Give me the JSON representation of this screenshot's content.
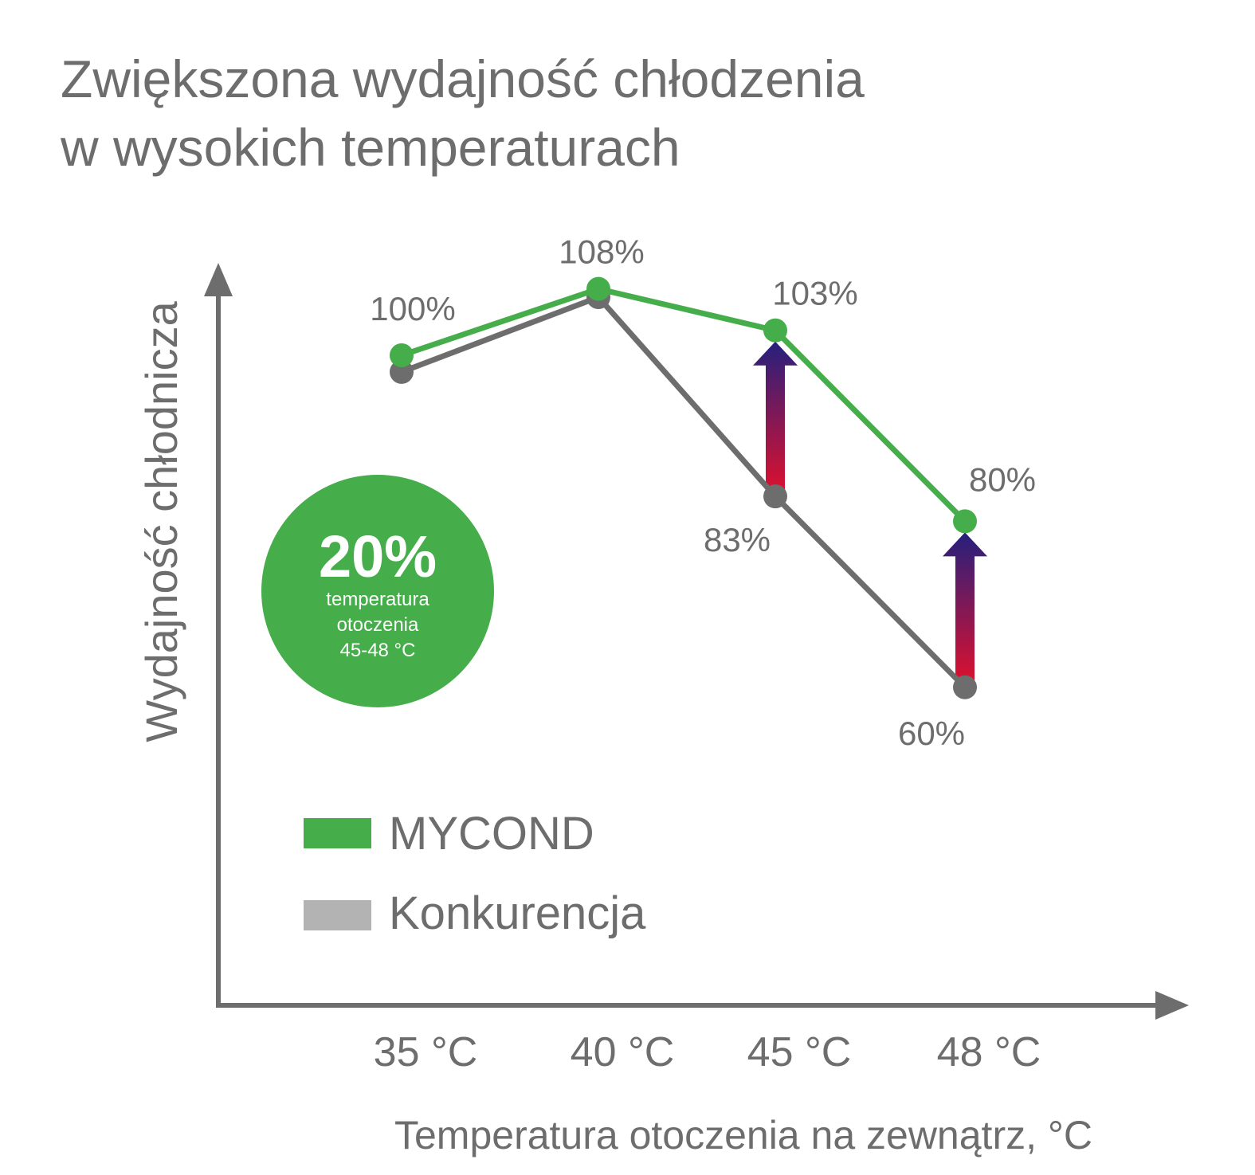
{
  "title_lines": [
    "Zwiększona wydajność chłodzenia",
    "w wysokich temperaturach"
  ],
  "colors": {
    "mycond": "#46ad4b",
    "competition_line": "#6d6d6d",
    "competition_legend": "#b3b3b3",
    "text": "#6d6d6d",
    "arrow_top": "#25207d",
    "arrow_bottom": "#e2102c"
  },
  "badge": {
    "value": "20%",
    "lines": [
      "temperatura",
      "otoczenia",
      "45-48 °C"
    ]
  },
  "chart_data": {
    "type": "line",
    "xlabel": "Temperatura otoczenia na zewnątrz, °C",
    "ylabel": "Wydajność chłodnicza",
    "categories": [
      "35 °C",
      "40 °C",
      "45 °C",
      "48 °C"
    ],
    "x": [
      35,
      40,
      45,
      48
    ],
    "series": [
      {
        "name": "MYCOND",
        "values": [
          100,
          108,
          103,
          80
        ],
        "labels": [
          "100%",
          "108%",
          "103%",
          "80%"
        ]
      },
      {
        "name": "Konkurencja",
        "values": [
          98,
          107,
          83,
          60
        ],
        "labels": [
          "",
          "",
          "83%",
          "60%"
        ]
      }
    ],
    "improvement_arrows_at": [
      "45 °C",
      "48 °C"
    ],
    "legend": "bottom-left, inside plot",
    "grid": false
  }
}
